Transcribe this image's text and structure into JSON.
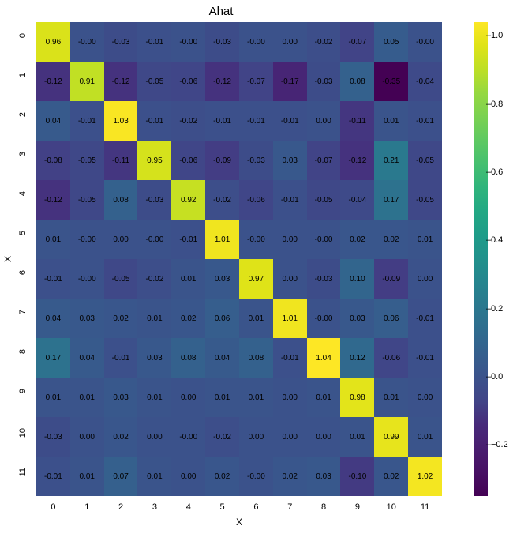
{
  "chart": {
    "type": "heatmap",
    "title": "Ahat",
    "title_fontsize": 15,
    "xlabel": "X",
    "ylabel": "X",
    "label_fontsize": 12,
    "tick_fontsize": 11,
    "annot_fontsize": 10,
    "background_color": "#ffffff",
    "xticks": [
      "0",
      "1",
      "2",
      "3",
      "4",
      "5",
      "6",
      "7",
      "8",
      "9",
      "10",
      "11"
    ],
    "yticks": [
      "0",
      "1",
      "2",
      "3",
      "4",
      "5",
      "6",
      "7",
      "8",
      "9",
      "10",
      "11"
    ],
    "data": [
      [
        0.96,
        -0.0,
        -0.03,
        -0.01,
        -0.0,
        -0.03,
        -0.0,
        0.0,
        -0.02,
        -0.07,
        0.05,
        -0.0
      ],
      [
        -0.12,
        0.91,
        -0.12,
        -0.05,
        -0.06,
        -0.12,
        -0.07,
        -0.17,
        -0.03,
        0.08,
        -0.35,
        -0.04
      ],
      [
        0.04,
        -0.01,
        1.03,
        -0.01,
        -0.02,
        -0.01,
        -0.01,
        -0.01,
        0.0,
        -0.11,
        0.01,
        -0.01
      ],
      [
        -0.08,
        -0.05,
        -0.11,
        0.95,
        -0.06,
        -0.09,
        -0.03,
        0.03,
        -0.07,
        -0.12,
        0.21,
        -0.05
      ],
      [
        -0.12,
        -0.05,
        0.08,
        -0.03,
        0.92,
        -0.02,
        -0.06,
        -0.01,
        -0.05,
        -0.04,
        0.17,
        -0.05
      ],
      [
        0.01,
        -0.0,
        0.0,
        -0.0,
        -0.01,
        1.01,
        -0.0,
        0.0,
        -0.0,
        0.02,
        0.02,
        0.01
      ],
      [
        -0.01,
        -0.0,
        -0.05,
        -0.02,
        0.01,
        0.03,
        0.97,
        0.0,
        -0.03,
        0.1,
        -0.09,
        0.0
      ],
      [
        0.04,
        0.03,
        0.02,
        0.01,
        0.02,
        0.06,
        0.01,
        1.01,
        -0.0,
        0.03,
        0.06,
        -0.01
      ],
      [
        0.17,
        0.04,
        -0.01,
        0.03,
        0.08,
        0.04,
        0.08,
        -0.01,
        1.04,
        0.12,
        -0.06,
        -0.01
      ],
      [
        0.01,
        0.01,
        0.03,
        0.01,
        0.0,
        0.01,
        0.01,
        0.0,
        0.01,
        0.98,
        0.01,
        0.0
      ],
      [
        -0.03,
        0.0,
        0.02,
        0.0,
        -0.0,
        -0.02,
        0.0,
        0.0,
        0.0,
        0.01,
        0.99,
        0.01
      ],
      [
        -0.01,
        0.01,
        0.07,
        0.01,
        0.0,
        0.02,
        -0.0,
        0.02,
        0.03,
        -0.1,
        0.02,
        1.02
      ]
    ],
    "vmin": -0.35,
    "vmax": 1.04,
    "colorbar": {
      "ticks": [
        -0.2,
        0.0,
        0.2,
        0.4,
        0.6,
        0.8,
        1.0
      ],
      "tick_labels": [
        "−0.2",
        "0.0",
        "0.2",
        "0.4",
        "0.6",
        "0.8",
        "1.0"
      ]
    },
    "colormap": "viridis",
    "viridis_stops": [
      [
        0.0,
        "#440154"
      ],
      [
        0.05,
        "#471063"
      ],
      [
        0.1,
        "#481d6f"
      ],
      [
        0.15,
        "#472a7a"
      ],
      [
        0.2,
        "#414487"
      ],
      [
        0.25,
        "#3b528b"
      ],
      [
        0.3,
        "#355f8d"
      ],
      [
        0.35,
        "#2f6c8e"
      ],
      [
        0.4,
        "#2a788e"
      ],
      [
        0.45,
        "#25848e"
      ],
      [
        0.5,
        "#21918c"
      ],
      [
        0.55,
        "#1e9c89"
      ],
      [
        0.6,
        "#22a884"
      ],
      [
        0.65,
        "#2fb47c"
      ],
      [
        0.7,
        "#44bf70"
      ],
      [
        0.75,
        "#5ec962"
      ],
      [
        0.8,
        "#7ad151"
      ],
      [
        0.85,
        "#95d840"
      ],
      [
        0.9,
        "#bddf26"
      ],
      [
        0.95,
        "#dfe318"
      ],
      [
        1.0,
        "#fde725"
      ]
    ]
  }
}
